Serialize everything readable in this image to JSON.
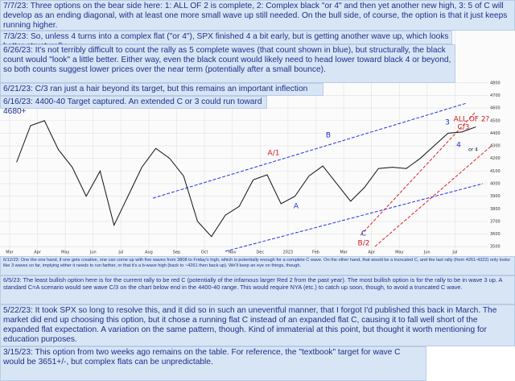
{
  "top_notes": [
    "7/7/23: Three options on the bear side here: 1: ALL OF 2 is complete, 2: Complex black \"or 4\" and then yet another new high, 3: 5 of C will develop as an ending diagonal, with at least one more small wave up still needed. On the bull side, of course, the option is that it just keeps running higher.",
    "7/3/23: So, unless 4 turns into a complex flat (\"or 4\"), SPX finished 4 a bit early, but is getting another wave up, which looks better structurally.",
    "6/26/23: It's not terribly difficult to count the rally as 5 complete waves (that count shown in blue), but structurally, the black count would \"look\" a little better. Either way, even the black count would likely need to head lower toward black 4 or beyond, so both counts suggest lower prices over the near term (potentially after a small bounce).",
    "6/21/23: C/3 ran just a hair beyond its target, but this remains an important inflection zone.",
    "6/16/23: 4400-40 Target captured. An extended C or 3 could run toward 4680+"
  ],
  "bottom_notes": [
    "6/12/23: One the one hand, if one gets creative, one can come up with five waves from 3808 to Friday's high, which is potentially enough for a complete C wave. On the other hand, that would be a truncated C, and the last rally (from 4261-4322) only looks like 3 waves so far, implying either it needs to run farther, or that it's a b-wave high (back to ~4261 then back up). We'll keep an eye on things, though.",
    "6/5/23: The least bullish option here is for the current rally to be red C (potentially of the infamous larger Red 2 from the past year). The most bullish option is for the rally to be in wave 3 up. A standard C=A scenario would see wave C/3 on the chart below end in the 4400-40 range. This would require NYA (etc.) to catch up soon, though, to avoid a truncated C wave.",
    "5/22/23: It took SPX so long to resolve this, and it did so in such an uneventful manner, that I forgot I'd published this back in March. The market did end up choosing this option, but it chose a running flat C instead of an expanded flat C, causing it to fall well short of the expanded flat expectation. A variation on the same pattern, though. Kind of immaterial at this point, but thought it worth mentioning for education purposes.",
    "3/15/23: This option from two weeks ago remains on the table. For reference, the \"textbook\" target for wave C would be 3651+/-, but complex flats can be unpredictable."
  ],
  "chart_data": {
    "type": "line",
    "categories": [
      "Mar",
      null,
      "Apr",
      null,
      "May",
      null,
      "Jun",
      null,
      "Jul",
      null,
      "Aug",
      null,
      "Sep",
      null,
      "Oct",
      null,
      "Nov",
      null,
      "Dec",
      null,
      "2023",
      null,
      "Feb",
      null,
      "Mar",
      null,
      "Apr",
      null,
      "May",
      null,
      "Jun",
      null,
      "Jul",
      null
    ],
    "series": [
      {
        "name": "SPX",
        "color": "#111111",
        "values": [
          4170,
          4460,
          4500,
          4270,
          4130,
          3900,
          4100,
          3670,
          3900,
          4130,
          4280,
          4200,
          4060,
          3700,
          3580,
          3750,
          3820,
          4030,
          4070,
          3840,
          3900,
          4060,
          4140,
          4000,
          3860,
          3970,
          4120,
          4130,
          4120,
          4200,
          4300,
          4400,
          4410,
          4450
        ]
      }
    ],
    "ylim": [
      3450,
      4850
    ],
    "yticks": [
      3500,
      3600,
      3700,
      3800,
      3900,
      4000,
      4100,
      4200,
      4300,
      4400,
      4500,
      4600,
      4700,
      4800
    ],
    "grid": true,
    "annotations": [
      {
        "text": "A/1",
        "color": "#d11a1a"
      },
      {
        "text": "B",
        "color": "#1a2fd1"
      },
      {
        "text": "A",
        "color": "#1a2fd1"
      },
      {
        "text": "C",
        "color": "#1a2fd1"
      },
      {
        "text": "B/2",
        "color": "#d11a1a"
      },
      {
        "text": "C/3",
        "color": "#d11a1a"
      },
      {
        "text": "ALL OF 2?",
        "color": "#d11a1a"
      },
      {
        "text": "3",
        "color": "#1a2fd1"
      },
      {
        "text": "4",
        "color": "#1a2fd1"
      },
      {
        "text": "or 4",
        "color": "#111111"
      }
    ]
  }
}
